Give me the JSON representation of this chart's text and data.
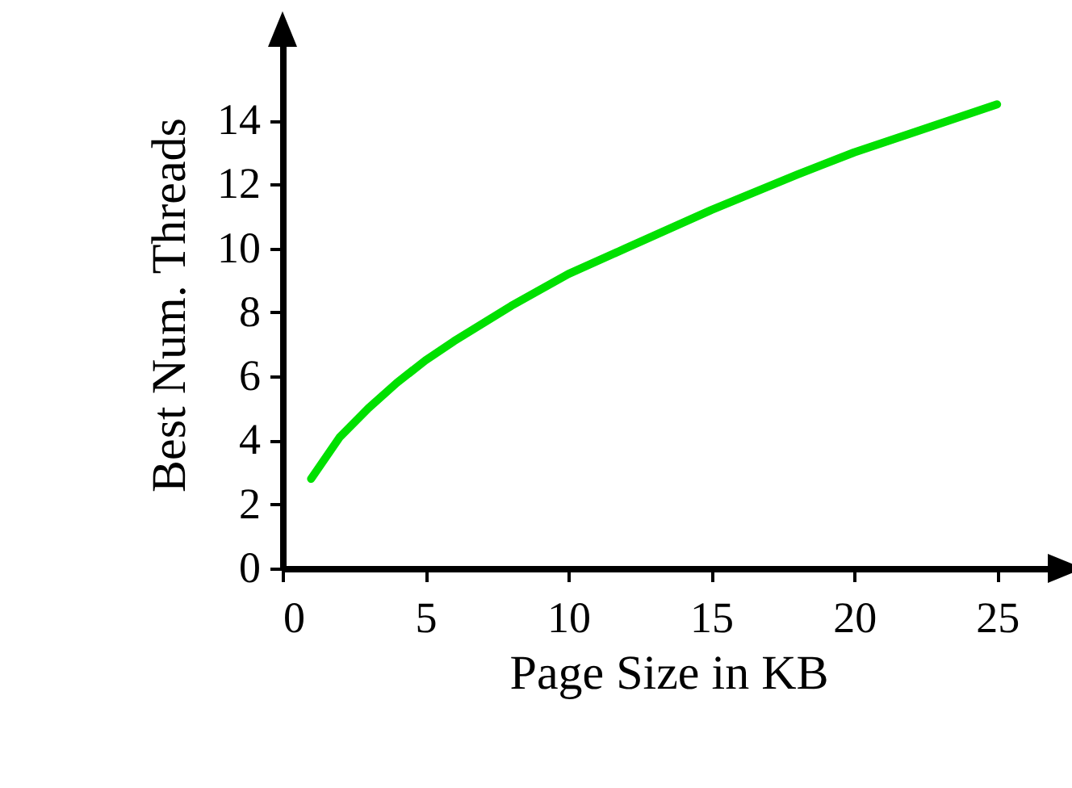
{
  "chart_data": {
    "type": "line",
    "xlabel": "Page Size in KB",
    "ylabel": "Best Num. Threads",
    "x": [
      1,
      2,
      3,
      4,
      5,
      6,
      8,
      10,
      12,
      15,
      18,
      20,
      22,
      25
    ],
    "series": [
      {
        "color": "#00e000",
        "values": [
          2.8,
          4.1,
          5.0,
          5.8,
          6.5,
          7.1,
          8.2,
          9.2,
          10.0,
          11.2,
          12.3,
          13.0,
          13.6,
          14.5
        ]
      }
    ],
    "xlim": [
      0,
      27
    ],
    "ylim": [
      0,
      16.5
    ],
    "xticks": [
      0,
      5,
      10,
      15,
      20,
      25
    ],
    "yticks": [
      0,
      2,
      4,
      6,
      8,
      10,
      12,
      14
    ]
  }
}
